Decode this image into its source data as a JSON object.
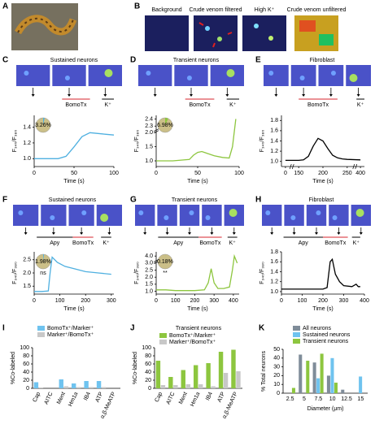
{
  "panel_labels": [
    "A",
    "B",
    "C",
    "D",
    "E",
    "F",
    "G",
    "H",
    "I",
    "J",
    "K"
  ],
  "panel_b": {
    "captions": [
      "Background",
      "Crude venom filtered",
      "High K⁺",
      "Crude venom unfiltered"
    ]
  },
  "chart_data": [
    {
      "type": "line",
      "title": "Sustained neurons",
      "xlabel": "Time (s)",
      "ylabel": "F₃₄₀/F₃₈₀",
      "x": [
        0,
        10,
        20,
        30,
        40,
        50,
        60,
        70,
        80,
        90,
        100
      ],
      "series": [
        {
          "color": "#4fb0e0",
          "values": [
            1.0,
            1.0,
            1.0,
            1.0,
            1.03,
            1.15,
            1.28,
            1.33,
            1.32,
            1.31,
            1.3
          ]
        }
      ],
      "xlim": [
        0,
        100
      ],
      "xticks": [
        0,
        50,
        100
      ],
      "ylim": [
        0.9,
        1.55
      ],
      "yticks": [
        {
          "value": 1,
          "label": "1.0"
        },
        1.2,
        1.4
      ],
      "spans": [
        {
          "label": "BomoTx",
          "start": 35,
          "end": 70,
          "color": "#d7262e"
        },
        {
          "label": "K⁺",
          "start": 85,
          "end": 100,
          "color": "#000000"
        }
      ],
      "inset_value": 3.26,
      "inset_label": "3.26%"
    },
    {
      "type": "line",
      "title": "Transient neurons",
      "xlabel": "Time (s)",
      "ylabel": "F₃₄₀/F₃₈₀",
      "x": [
        0,
        20,
        40,
        45,
        50,
        55,
        60,
        70,
        80,
        88,
        92,
        96
      ],
      "series": [
        {
          "color": "#8dc63f",
          "values": [
            1.0,
            1.0,
            1.05,
            1.2,
            1.3,
            1.33,
            1.28,
            1.18,
            1.12,
            1.1,
            1.5,
            2.4
          ]
        }
      ],
      "xlim": [
        0,
        100
      ],
      "xticks": [
        0,
        50,
        100
      ],
      "ylim": [
        0.8,
        2.45
      ],
      "ybreaks": [
        [
          2.1,
          2.25
        ]
      ],
      "yticks": [
        {
          "value": 1,
          "label": "1.0"
        },
        1.5,
        {
          "value": 2,
          "label": "2.0"
        },
        2.3,
        2.4
      ],
      "spans": [
        {
          "label": "BomoTx",
          "start": 35,
          "end": 70,
          "color": "#d7262e"
        },
        {
          "label": "K⁺",
          "start": 85,
          "end": 100,
          "color": "#000000"
        }
      ],
      "inset_value": 6.98,
      "inset_label": "6.98%"
    },
    {
      "type": "line",
      "title": "Fibroblast",
      "xlabel": "Time (s)",
      "ylabel": "F₃₄₀/F₃₈₀",
      "x": [
        0,
        150,
        160,
        170,
        180,
        190,
        200,
        210,
        220,
        230,
        240,
        250,
        400
      ],
      "series": [
        {
          "color": "#000000",
          "values": [
            1.02,
            1.02,
            1.03,
            1.1,
            1.3,
            1.45,
            1.4,
            1.25,
            1.12,
            1.07,
            1.05,
            1.04,
            1.03
          ]
        }
      ],
      "xlim": [
        -10,
        410
      ],
      "xbreaks": [
        [
          15,
          135
        ],
        [
          265,
          385
        ]
      ],
      "xticks": [
        0,
        150,
        200,
        250,
        400
      ],
      "ylim": [
        0.9,
        1.9
      ],
      "yticks": [
        {
          "value": 1,
          "label": "1.0"
        },
        1.2,
        1.4,
        1.6,
        1.8
      ],
      "spans": [
        {
          "label": "BomoTx",
          "start": 150,
          "end": 230,
          "color": "#d7262e"
        },
        {
          "label": "K⁺",
          "start": 390,
          "end": 410,
          "color": "#000000"
        }
      ]
    },
    {
      "type": "line",
      "title": "Sustained neurons",
      "xlabel": "Time (s)",
      "ylabel": "F₃₄₀/F₃₈₀",
      "x": [
        0,
        30,
        55,
        62,
        70,
        90,
        120,
        160,
        200,
        250,
        300
      ],
      "series": [
        {
          "color": "#4fb0e0",
          "values": [
            1.3,
            1.3,
            1.32,
            2.0,
            2.6,
            2.4,
            2.25,
            2.15,
            2.05,
            2.0,
            1.95
          ]
        }
      ],
      "xlim": [
        0,
        310
      ],
      "xticks": [
        0,
        100,
        200,
        300
      ],
      "ylim": [
        1.2,
        2.8
      ],
      "yticks": [
        1.5,
        {
          "value": 2,
          "label": "2.0"
        },
        2.5
      ],
      "spans": [
        {
          "label": "Apy",
          "start": 10,
          "end": 150,
          "color": "#000000"
        },
        {
          "label": "BomoTx",
          "start": 150,
          "end": 230,
          "color": "#d7262e"
        },
        {
          "label": "K⁺",
          "start": 260,
          "end": 300,
          "color": "#000000"
        }
      ],
      "inset_value": 1.98,
      "inset_label": "1.98%",
      "inset_note": "ns"
    },
    {
      "type": "line",
      "title": "Transient neurons",
      "xlabel": "Time (s)",
      "ylabel": "F₃₄₀/F₃₈₀",
      "x": [
        0,
        50,
        100,
        150,
        200,
        250,
        270,
        285,
        300,
        320,
        350,
        380,
        395,
        405,
        420
      ],
      "series": [
        {
          "color": "#8dc63f",
          "values": [
            1.1,
            1.1,
            1.05,
            1.05,
            1.05,
            1.1,
            1.6,
            2.6,
            1.6,
            1.2,
            1.2,
            1.3,
            2.5,
            4.0,
            3.0
          ]
        }
      ],
      "xlim": [
        0,
        430
      ],
      "xticks": [
        0,
        100,
        200,
        300,
        400
      ],
      "ylim": [
        0.8,
        4.2
      ],
      "ybreaks": [
        [
          3.2,
          3.8
        ]
      ],
      "yticks": [
        {
          "value": 1,
          "label": "1.0"
        },
        1.5,
        {
          "value": 2,
          "label": "2.0"
        },
        2.5,
        {
          "value": 3,
          "label": "3.0"
        },
        {
          "value": 4,
          "label": "4.0"
        }
      ],
      "spans": [
        {
          "label": "Apy",
          "start": 10,
          "end": 220,
          "color": "#000000"
        },
        {
          "label": "BomoTx",
          "start": 220,
          "end": 340,
          "color": "#d7262e"
        },
        {
          "label": "K⁺",
          "start": 370,
          "end": 420,
          "color": "#000000"
        }
      ],
      "inset_value": 0.18,
      "inset_label": "0.18%",
      "inset_note": "**"
    },
    {
      "type": "line",
      "title": "Fibroblast",
      "xlabel": "Time (s)",
      "ylabel": "F₃₄₀/F₃₈₀",
      "x": [
        0,
        50,
        100,
        150,
        200,
        220,
        235,
        245,
        260,
        280,
        300,
        340,
        360,
        370,
        380
      ],
      "series": [
        {
          "color": "#000000",
          "values": [
            1.05,
            1.05,
            1.05,
            1.05,
            1.05,
            1.08,
            1.6,
            1.65,
            1.35,
            1.2,
            1.12,
            1.1,
            1.15,
            1.1,
            1.1
          ]
        }
      ],
      "xlim": [
        0,
        400
      ],
      "xticks": [
        0,
        100,
        200,
        300,
        400
      ],
      "ylim": [
        0.95,
        1.8
      ],
      "yticks": [
        {
          "value": 1,
          "label": "1.0"
        },
        1.2,
        1.4,
        1.6,
        1.8
      ],
      "spans": [
        {
          "label": "Apy",
          "start": 10,
          "end": 200,
          "color": "#000000"
        },
        {
          "label": "BomoTx",
          "start": 200,
          "end": 320,
          "color": "#d7262e"
        },
        {
          "label": "K⁺",
          "start": 340,
          "end": 380,
          "color": "#000000"
        }
      ]
    },
    {
      "type": "bar",
      "ylabel": "%Co-labeled",
      "categories": [
        "Cap",
        "AITC",
        "Ment",
        "Hm1a",
        "IB4",
        "ATP",
        "α,β-MeATP"
      ],
      "series": [
        {
          "name": "BomoTx⁺/Marker⁺",
          "color": "#6fc3ef",
          "values": [
            15,
            0,
            22,
            12,
            18,
            18,
            0
          ]
        },
        {
          "name": "Marker⁺/BomoTx⁺",
          "color": "#c8c8c8",
          "values": [
            2,
            0,
            5,
            3,
            3,
            3,
            0
          ]
        }
      ],
      "ylim": [
        0,
        100
      ],
      "yticks": [
        0,
        20,
        40,
        60,
        80,
        100
      ]
    },
    {
      "type": "bar",
      "title": "Transient neurons",
      "ylabel": "%Co-labeled",
      "categories": [
        "Cap",
        "AITC",
        "Ment",
        "Hm1a",
        "IB4",
        "ATP",
        "α,β-MeATP"
      ],
      "series": [
        {
          "name": "BomoTx⁺/Marker⁺",
          "color": "#8dc63f",
          "values": [
            68,
            28,
            45,
            57,
            62,
            90,
            95
          ]
        },
        {
          "name": "Marker⁺/BomoTx⁺",
          "color": "#c8c8c8",
          "values": [
            8,
            8,
            10,
            10,
            5,
            38,
            42
          ]
        }
      ],
      "ylim": [
        0,
        100
      ],
      "yticks": [
        0,
        20,
        40,
        60,
        80,
        100
      ]
    },
    {
      "type": "bar",
      "xlabel": "Diameter (μm)",
      "ylabel": "% Total neurons",
      "categories": [
        "2.5",
        "5",
        "7.5",
        "10",
        "12.5",
        "15"
      ],
      "series": [
        {
          "name": "All neurons",
          "color": "#7f8c99",
          "values": [
            0,
            44,
            35,
            20,
            4,
            0
          ]
        },
        {
          "name": "Sustained neurons",
          "color": "#6fc3ef",
          "values": [
            0,
            0,
            17,
            40,
            0,
            19
          ]
        },
        {
          "name": "Transient neurons",
          "color": "#8dc63f",
          "values": [
            6,
            37,
            45,
            12,
            0,
            0
          ]
        }
      ],
      "ylim": [
        0,
        50
      ],
      "yticks": [
        0,
        10,
        20,
        30,
        40,
        50
      ]
    }
  ]
}
